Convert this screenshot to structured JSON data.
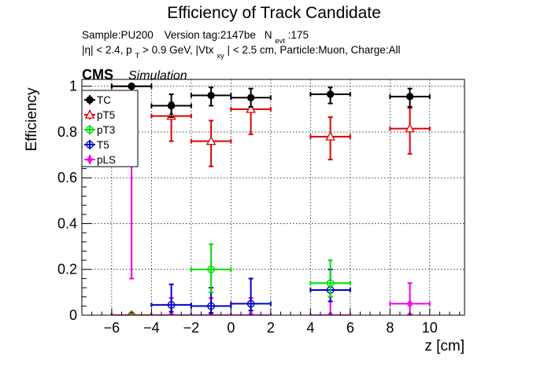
{
  "chart_data": {
    "type": "scatter",
    "title": "Efficiency of Track Candidate",
    "subtitle_1": {
      "sample": "Sample:PU200",
      "version": "Version tag:2147be",
      "nevt_main": "N",
      "nevt_sub": "evt",
      "nevt_value": ":175"
    },
    "subtitle_2": {
      "eta_cut": "|η| < 2.4, p",
      "pt_sub": "T",
      "pt_cut": " > 0.9 GeV, |Vtx",
      "vtx_sub": "xy",
      "rest": "| < 2.5 cm, Particle:Muon, Charge:All"
    },
    "experiment": "CMS",
    "experiment_tag": "Simulation",
    "xlabel": "z [cm]",
    "ylabel": "Efficiency",
    "xlim": [
      -7.5,
      11.75
    ],
    "ylim": [
      0,
      1.03
    ],
    "x_ticks": [
      -6,
      -4,
      -2,
      0,
      2,
      4,
      6,
      8,
      10
    ],
    "y_ticks": [
      0,
      0.2,
      0.4,
      0.6,
      0.8,
      1
    ],
    "y_tick_labels": [
      "0",
      "0.2",
      "0.4",
      "0.6",
      "0.8",
      "1"
    ],
    "grid": true,
    "legend_position": "top-left",
    "series": [
      {
        "name": "TC",
        "color": "#000000",
        "marker": "filled-circle",
        "points": [
          {
            "x": -5,
            "xerr": 1,
            "y": 1.0,
            "ylo": 0.0,
            "yhi": 0.0
          },
          {
            "x": -3,
            "xerr": 1,
            "y": 0.915,
            "ylo": 0.05,
            "yhi": 0.05
          },
          {
            "x": -1,
            "xerr": 1,
            "y": 0.96,
            "ylo": 0.045,
            "yhi": 0.035
          },
          {
            "x": 1,
            "xerr": 1,
            "y": 0.95,
            "ylo": 0.04,
            "yhi": 0.04
          },
          {
            "x": 5,
            "xerr": 1,
            "y": 0.965,
            "ylo": 0.04,
            "yhi": 0.03
          },
          {
            "x": 9,
            "xerr": 1,
            "y": 0.955,
            "ylo": 0.045,
            "yhi": 0.035
          }
        ]
      },
      {
        "name": "pT5",
        "color": "#dd0000",
        "marker": "open-triangle",
        "points": [
          {
            "x": -5,
            "xerr": 1,
            "y": 0.0,
            "ylo": 0.0,
            "yhi": 0.0
          },
          {
            "x": -3,
            "xerr": 1,
            "y": 0.87,
            "ylo": 0.11,
            "yhi": 0.06
          },
          {
            "x": -1,
            "xerr": 1,
            "y": 0.76,
            "ylo": 0.11,
            "yhi": 0.09
          },
          {
            "x": 1,
            "xerr": 1,
            "y": 0.9,
            "ylo": 0.11,
            "yhi": 0.06
          },
          {
            "x": 5,
            "xerr": 1,
            "y": 0.78,
            "ylo": 0.1,
            "yhi": 0.085
          },
          {
            "x": 9,
            "xerr": 1,
            "y": 0.815,
            "ylo": 0.11,
            "yhi": 0.09
          }
        ]
      },
      {
        "name": "pT3",
        "color": "#00dd00",
        "marker": "open-circle",
        "points": [
          {
            "x": -5,
            "xerr": 1,
            "y": 0.0,
            "ylo": 0.0,
            "yhi": 0.0
          },
          {
            "x": -1,
            "xerr": 1,
            "y": 0.2,
            "ylo": 0.1,
            "yhi": 0.11
          },
          {
            "x": 5,
            "xerr": 1,
            "y": 0.14,
            "ylo": 0.06,
            "yhi": 0.1
          }
        ]
      },
      {
        "name": "T5",
        "color": "#0000cc",
        "marker": "open-circle",
        "points": [
          {
            "x": -5,
            "xerr": 1,
            "y": 0.0,
            "ylo": 0.0,
            "yhi": 0.0
          },
          {
            "x": -3,
            "xerr": 1,
            "y": 0.045,
            "ylo": 0.03,
            "yhi": 0.09
          },
          {
            "x": -1,
            "xerr": 1,
            "y": 0.04,
            "ylo": 0.03,
            "yhi": 0.08
          },
          {
            "x": 1,
            "xerr": 1,
            "y": 0.05,
            "ylo": 0.03,
            "yhi": 0.11
          },
          {
            "x": 5,
            "xerr": 1,
            "y": 0.11,
            "ylo": 0.05,
            "yhi": 0.09
          }
        ]
      },
      {
        "name": "pLS",
        "color": "#ee00ee",
        "marker": "open-diamond",
        "points": [
          {
            "x": -5,
            "xerr": 1,
            "y": 1.0,
            "ylo": 0.84,
            "yhi": 0.0
          },
          {
            "x": -3,
            "xerr": 1,
            "y": 0.0,
            "ylo": 0.0,
            "yhi": 0.075
          },
          {
            "x": -1,
            "xerr": 1,
            "y": 0.0,
            "ylo": 0.0,
            "yhi": 0.075
          },
          {
            "x": 1,
            "xerr": 1,
            "y": 0.0,
            "ylo": 0.0,
            "yhi": 0.075
          },
          {
            "x": 5,
            "xerr": 1,
            "y": 0.0,
            "ylo": 0.0,
            "yhi": 0.08
          },
          {
            "x": 9,
            "xerr": 1,
            "y": 0.05,
            "ylo": 0.045,
            "yhi": 0.09
          }
        ]
      }
    ]
  }
}
